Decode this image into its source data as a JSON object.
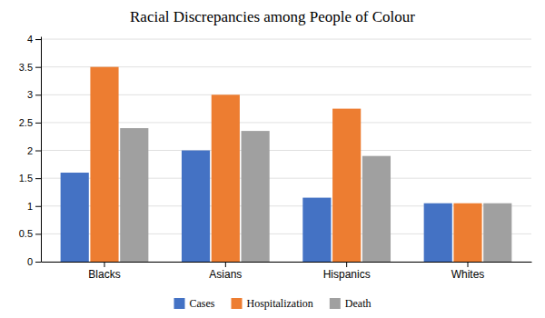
{
  "chart_data": {
    "type": "bar",
    "title": "Racial Discrepancies among People of Colour",
    "categories": [
      "Blacks",
      "Asians",
      "Hispanics",
      "Whites"
    ],
    "series": [
      {
        "name": "Cases",
        "color": "#4472c4",
        "values": [
          1.6,
          2.0,
          1.15,
          1.05
        ]
      },
      {
        "name": "Hospitalization",
        "color": "#ed7d31",
        "values": [
          3.5,
          3.0,
          2.75,
          1.05
        ]
      },
      {
        "name": "Death",
        "color": "#a0a0a0",
        "values": [
          2.4,
          2.35,
          1.9,
          1.05
        ]
      }
    ],
    "ylim": [
      0,
      4.05
    ],
    "yticks": [
      0,
      0.5,
      1,
      1.5,
      2,
      2.5,
      3,
      3.5,
      4
    ],
    "grid": true,
    "legend": "bottom"
  }
}
